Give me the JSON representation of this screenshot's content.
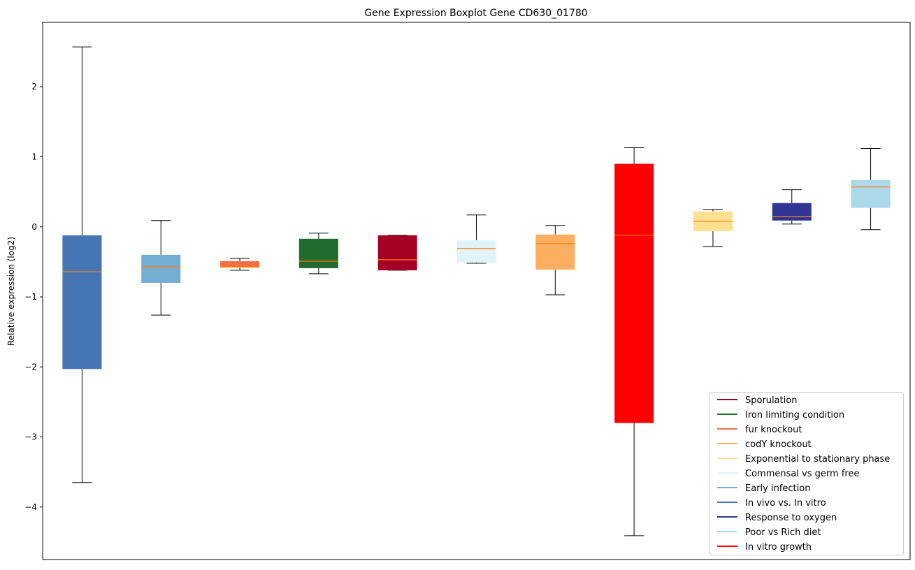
{
  "chart_data": {
    "type": "boxplot",
    "title": "Gene Expression Boxplot Gene CD630_01780",
    "xlabel": "",
    "ylabel": "Relative expression (log2)",
    "ylim": [
      -4.75,
      2.92
    ],
    "yticks": [
      2,
      1,
      0,
      -1,
      -2,
      -3,
      -4
    ],
    "ytick_labels": [
      "2",
      "1",
      "0",
      "−1",
      "−2",
      "−3",
      "−4"
    ],
    "grid": false,
    "legend_placement": "lower-right",
    "median_color": "#ff7f0e",
    "series": [
      {
        "name": "In vivo vs. In vitro",
        "color": "#4575b4",
        "whisker_low": -3.65,
        "q1": -2.03,
        "median": -0.64,
        "q3": -0.12,
        "whisker_high": 2.57
      },
      {
        "name": "Early infection",
        "color": "#74add1",
        "whisker_low": -1.26,
        "q1": -0.8,
        "median": -0.57,
        "q3": -0.4,
        "whisker_high": 0.09
      },
      {
        "name": "fur knockout",
        "color": "#f46d43",
        "whisker_low": -0.62,
        "q1": -0.58,
        "median": -0.57,
        "q3": -0.49,
        "whisker_high": -0.45
      },
      {
        "name": "Iron limiting condition",
        "color": "#226b2e",
        "whisker_low": -0.67,
        "q1": -0.59,
        "median": -0.49,
        "q3": -0.17,
        "whisker_high": -0.09
      },
      {
        "name": "Sporulation",
        "color": "#a50026",
        "whisker_low": -0.62,
        "q1": -0.62,
        "median": -0.47,
        "q3": -0.12,
        "whisker_high": -0.12
      },
      {
        "name": "Commensal vs germ free",
        "color": "#e0f3f8",
        "whisker_low": -0.52,
        "q1": -0.51,
        "median": -0.31,
        "q3": -0.19,
        "whisker_high": 0.17
      },
      {
        "name": "codY knockout",
        "color": "#fdae61",
        "whisker_low": -0.97,
        "q1": -0.61,
        "median": -0.24,
        "q3": -0.11,
        "whisker_high": 0.02
      },
      {
        "name": "In vitro growth",
        "color": "#ff0000",
        "whisker_low": -4.41,
        "q1": -2.8,
        "median": -0.12,
        "q3": 0.9,
        "whisker_high": 1.13
      },
      {
        "name": "Exponential to stationary phase",
        "color": "#fee090",
        "whisker_low": -0.28,
        "q1": -0.06,
        "median": 0.08,
        "q3": 0.22,
        "whisker_high": 0.25
      },
      {
        "name": "Response to oxygen",
        "color": "#313695",
        "whisker_low": 0.04,
        "q1": 0.09,
        "median": 0.15,
        "q3": 0.34,
        "whisker_high": 0.53
      },
      {
        "name": "Poor vs Rich diet",
        "color": "#abd9e9",
        "whisker_low": -0.04,
        "q1": 0.27,
        "median": 0.57,
        "q3": 0.67,
        "whisker_high": 1.12
      }
    ],
    "legend": [
      {
        "label": "Sporulation",
        "color": "#a50026"
      },
      {
        "label": "Iron limiting condition",
        "color": "#226b2e"
      },
      {
        "label": "fur knockout",
        "color": "#f46d43"
      },
      {
        "label": "codY knockout",
        "color": "#fdae61"
      },
      {
        "label": "Exponential to stationary phase",
        "color": "#fee090"
      },
      {
        "label": "Commensal vs germ free",
        "color": "#e0f3f8"
      },
      {
        "label": "Early infection",
        "color": "#74add1"
      },
      {
        "label": "In vivo vs. In vitro",
        "color": "#4575b4"
      },
      {
        "label": "Response to oxygen",
        "color": "#313695"
      },
      {
        "label": "Poor vs Rich diet",
        "color": "#abd9e9"
      },
      {
        "label": "In vitro growth",
        "color": "#ff0000"
      }
    ]
  }
}
